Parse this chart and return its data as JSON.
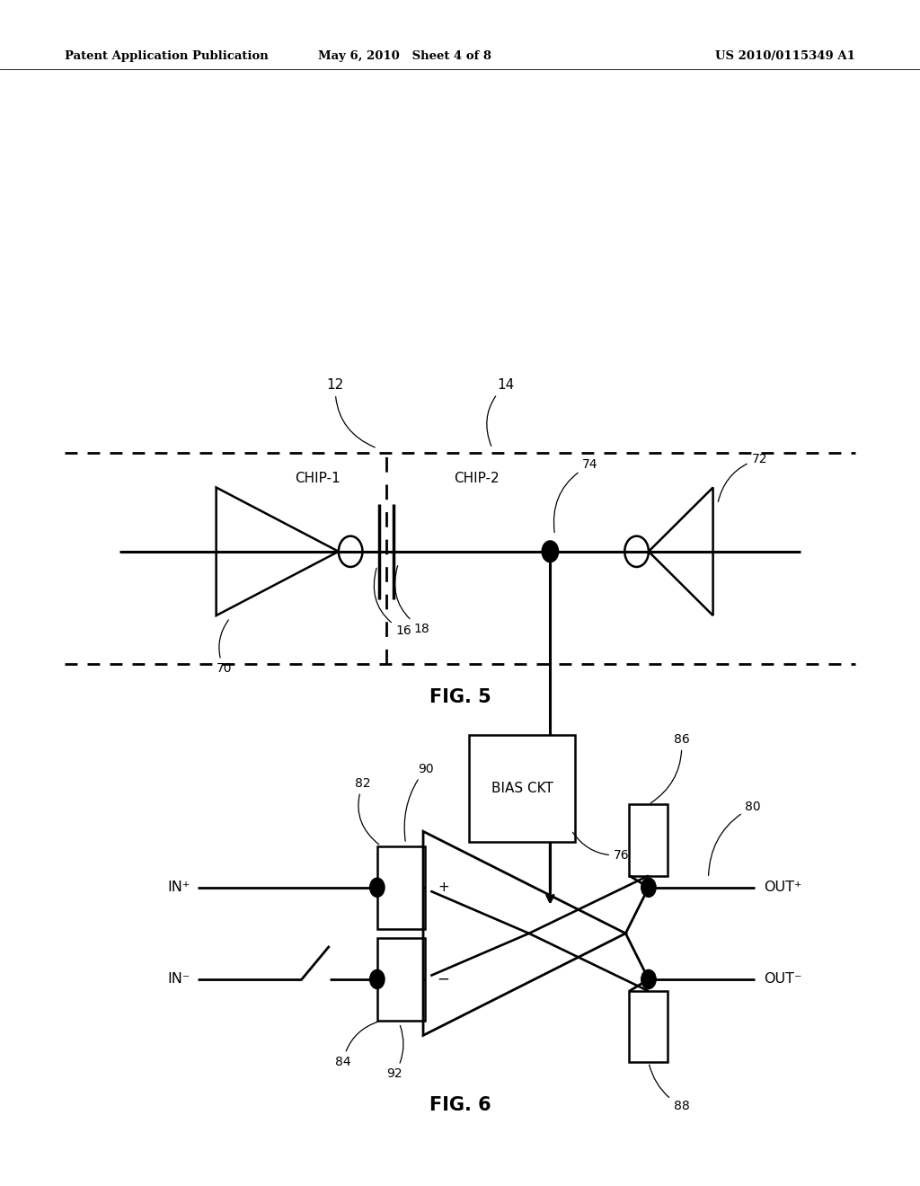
{
  "fig_width": 10.24,
  "fig_height": 13.2,
  "bg_color": "#ffffff",
  "line_color": "#000000",
  "header_left": "Patent Application Publication",
  "header_mid": "May 6, 2010   Sheet 4 of 8",
  "header_right": "US 2010/0115349 A1",
  "fig5_label": "FIG. 5",
  "fig6_label": "FIG. 6",
  "chip1_label": "CHIP-1",
  "chip2_label": "CHIP-2",
  "bias_ckt_label": "BIAS CKT"
}
